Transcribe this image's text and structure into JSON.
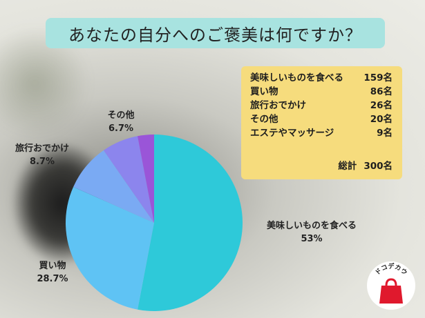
{
  "title": "あなたの自分へのご褒美は何ですか？",
  "legend": {
    "rows": [
      {
        "name": "美味しいものを食べる",
        "value": "159名"
      },
      {
        "name": "買い物",
        "value": "86名"
      },
      {
        "name": "旅行おでかけ",
        "value": "26名"
      },
      {
        "name": "その他",
        "value": "20名"
      },
      {
        "name": "エステやマッサージ",
        "value": "9名"
      }
    ],
    "total_label": "総計",
    "total_value": "300名"
  },
  "labels": [
    {
      "name": "美味しいものを食べる",
      "pct": "53%"
    },
    {
      "name": "買い物",
      "pct": "28.7%"
    },
    {
      "name": "旅行おでかけ",
      "pct": "8.7%"
    },
    {
      "name": "その他",
      "pct": "6.7%"
    }
  ],
  "logo_text": "ドコデカウ",
  "colors": {
    "title_bg": "#a8e3e0",
    "legend_bg": "#f6dc7d",
    "slices": [
      "#2ec9d9",
      "#5fc3f4",
      "#7aaaf3",
      "#8c85ed",
      "#9a55d8"
    ],
    "logo_red": "#e0192d"
  },
  "chart_data": {
    "type": "pie",
    "title": "あなたの自分へのご褒美は何ですか？",
    "categories": [
      "美味しいものを食べる",
      "買い物",
      "旅行おでかけ",
      "その他",
      "エステやマッサージ"
    ],
    "values": [
      159,
      86,
      26,
      20,
      9
    ],
    "total": 300,
    "unit": "名",
    "percent_labels": [
      "53%",
      "28.7%",
      "8.7%",
      "6.7%",
      ""
    ],
    "legend_position": "top-right"
  }
}
